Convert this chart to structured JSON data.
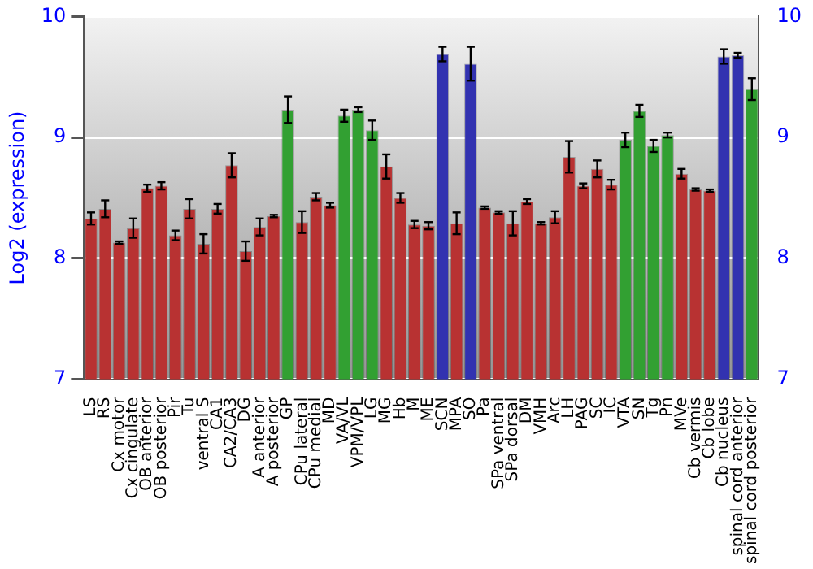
{
  "chart_data": {
    "type": "bar",
    "ylabel": "Log2 (expression)",
    "categories": [
      "LS",
      "RS",
      "Cx motor",
      "Cx cingulate",
      "OB anterior",
      "OB posterior",
      "Pir",
      "Tu",
      "ventral S",
      "CA1",
      "CA2/CA3",
      "DG",
      "A anterior",
      "A posterior",
      "GP",
      "CPu lateral",
      "CPu medial",
      "MD",
      "VA/VL",
      "VPM/VPL",
      "LG",
      "MG",
      "Hb",
      "M",
      "ME",
      "SCN",
      "MPA",
      "SO",
      "Pa",
      "SPa ventral",
      "SPa dorsal",
      "DM",
      "VMH",
      "Arc",
      "LH",
      "PAG",
      "SC",
      "IC",
      "VTA",
      "SN",
      "Tg",
      "Pn",
      "MVe",
      "Cb vermis",
      "Cb lobe",
      "Cb nucleus",
      "spinal cord anterior",
      "spinal cord posterior"
    ],
    "values": [
      8.33,
      8.41,
      8.13,
      8.25,
      8.58,
      8.6,
      8.19,
      8.41,
      8.12,
      8.41,
      8.77,
      8.06,
      8.26,
      8.35,
      9.23,
      8.3,
      8.51,
      8.44,
      9.18,
      9.23,
      9.06,
      8.76,
      8.5,
      8.28,
      8.27,
      9.69,
      8.29,
      9.61,
      8.42,
      8.38,
      8.29,
      8.47,
      8.29,
      8.34,
      8.84,
      8.6,
      8.74,
      8.61,
      8.98,
      9.22,
      8.93,
      9.02,
      8.7,
      8.57,
      8.56,
      9.67,
      9.68,
      9.4
    ],
    "errors": [
      0.05,
      0.07,
      0.01,
      0.08,
      0.03,
      0.03,
      0.04,
      0.08,
      0.08,
      0.04,
      0.1,
      0.08,
      0.07,
      0.01,
      0.11,
      0.09,
      0.03,
      0.02,
      0.05,
      0.02,
      0.08,
      0.1,
      0.04,
      0.03,
      0.03,
      0.06,
      0.09,
      0.14,
      0.01,
      0.01,
      0.1,
      0.02,
      0.01,
      0.05,
      0.13,
      0.02,
      0.07,
      0.04,
      0.06,
      0.05,
      0.05,
      0.02,
      0.04,
      0.01,
      0.01,
      0.06,
      0.02,
      0.09
    ],
    "colors": [
      "#b83232",
      "#b83232",
      "#b83232",
      "#b83232",
      "#b83232",
      "#b83232",
      "#b83232",
      "#b83232",
      "#b83232",
      "#b83232",
      "#b83232",
      "#b83232",
      "#b83232",
      "#b83232",
      "#32a032",
      "#b83232",
      "#b83232",
      "#b83232",
      "#32a032",
      "#32a032",
      "#32a032",
      "#b83232",
      "#b83232",
      "#b83232",
      "#b83232",
      "#3232b0",
      "#b83232",
      "#3232b0",
      "#b83232",
      "#b83232",
      "#b83232",
      "#b83232",
      "#b83232",
      "#b83232",
      "#b83232",
      "#b83232",
      "#b83232",
      "#b83232",
      "#32a032",
      "#32a032",
      "#32a032",
      "#32a032",
      "#b83232",
      "#b83232",
      "#b83232",
      "#3232b0",
      "#3232b0",
      "#32a032"
    ],
    "ylim": [
      7,
      10
    ],
    "yticks": [
      7,
      8,
      9,
      10
    ],
    "y2lim": [
      7,
      10
    ],
    "y2ticks": [
      7,
      8,
      9,
      10
    ],
    "grid": "y",
    "legend": false
  }
}
